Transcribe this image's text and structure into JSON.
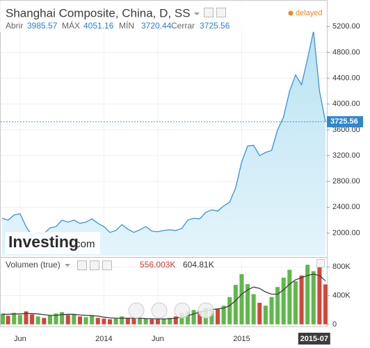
{
  "header": {
    "status": "delayed",
    "labels": [
      "Abrir",
      "MÁX",
      "MÍN",
      "Cerrar"
    ],
    "values": [
      3985.57,
      4051.16,
      3720.44,
      3725.56
    ]
  },
  "watermark": {
    "brand": "Investing",
    "suffix": ".com"
  },
  "chart_data": {
    "type": "area",
    "title": "Shanghai Composite, China, D, SS",
    "categories": [
      null,
      null,
      null,
      "Jun",
      null,
      null,
      null,
      null,
      null,
      null,
      null,
      null,
      null,
      null,
      null,
      null,
      null,
      "2014",
      null,
      null,
      null,
      null,
      null,
      null,
      null,
      null,
      "Jun",
      null,
      null,
      null,
      null,
      null,
      null,
      null,
      null,
      null,
      null,
      null,
      null,
      null,
      "2015",
      null,
      null,
      null,
      null,
      null,
      null,
      null,
      null,
      null,
      null,
      null,
      "2015-07",
      null,
      null
    ],
    "series": [
      {
        "color": "#3a92d4",
        "values": [
          2230,
          2200,
          2280,
          2300,
          2100,
          1960,
          2010,
          1990,
          2080,
          2100,
          2200,
          2170,
          2200,
          2150,
          2170,
          2220,
          2150,
          2100,
          2010,
          2040,
          2130,
          2060,
          2010,
          2050,
          2100,
          2030,
          2020,
          2040,
          2050,
          2040,
          2070,
          2200,
          2230,
          2220,
          2320,
          2360,
          2340,
          2420,
          2480,
          2700,
          3100,
          3350,
          3360,
          3200,
          3250,
          3280,
          3600,
          3800,
          4200,
          4450,
          4300,
          4700,
          5130,
          4200,
          3725.56
        ]
      }
    ],
    "close": 3725.56,
    "ylim": [
      1650,
      5580
    ],
    "yticks": [
      {
        "value": 2000,
        "label": "2000.00"
      },
      {
        "value": 2400,
        "label": "2400.00"
      },
      {
        "value": 2800,
        "label": "2800.00"
      },
      {
        "value": 3200,
        "label": "3200.00"
      },
      {
        "value": 3600,
        "label": "3600.00"
      },
      {
        "value": 4000,
        "label": "4000.00"
      },
      {
        "value": 4400,
        "label": "4400.00"
      },
      {
        "value": 4800,
        "label": "4800.00"
      },
      {
        "value": 5200,
        "label": "5200.00"
      }
    ],
    "grid": true,
    "volume": {
      "type": "bar",
      "title": "Volumen (true)",
      "readout": [
        "556.003K",
        "604.81K"
      ],
      "ylim": [
        -30000,
        880000
      ],
      "yticks": [
        0,
        {
          "value": 400000,
          "label": "400K"
        },
        {
          "value": 800000,
          "label": "800K"
        }
      ],
      "series": [
        {
          "color": "#5fb84a",
          "values": [
            150000,
            null,
            160000,
            130000,
            null,
            null,
            110000,
            null,
            120000,
            150000,
            170000,
            null,
            140000,
            null,
            100000,
            130000,
            null,
            null,
            null,
            80000,
            110000,
            null,
            null,
            90000,
            80000,
            null,
            null,
            80000,
            90000,
            null,
            160000,
            180000,
            200000,
            null,
            230000,
            220000,
            null,
            260000,
            380000,
            550000,
            700000,
            560000,
            420000,
            null,
            260000,
            380000,
            520000,
            650000,
            760000,
            600000,
            null,
            830000,
            740000,
            null,
            null
          ]
        },
        {
          "color": "#d2473a",
          "values": [
            null,
            120000,
            null,
            null,
            180000,
            140000,
            null,
            90000,
            null,
            null,
            null,
            130000,
            null,
            110000,
            null,
            null,
            90000,
            80000,
            70000,
            null,
            null,
            90000,
            80000,
            null,
            null,
            70000,
            70000,
            null,
            null,
            110000,
            null,
            null,
            null,
            190000,
            null,
            null,
            210000,
            null,
            null,
            null,
            null,
            null,
            null,
            300000,
            null,
            null,
            null,
            null,
            null,
            null,
            680000,
            null,
            null,
            820000,
            556003
          ]
        },
        {
          "type": "line",
          "color": "#3b3b3b",
          "values": [
            140000,
            140000,
            145000,
            145000,
            150000,
            150000,
            145000,
            135000,
            125000,
            125000,
            135000,
            140000,
            140000,
            130000,
            125000,
            120000,
            115000,
            100000,
            90000,
            85000,
            85000,
            85000,
            85000,
            85000,
            80000,
            78000,
            75000,
            75000,
            78000,
            85000,
            100000,
            120000,
            145000,
            170000,
            190000,
            205000,
            215000,
            225000,
            260000,
            330000,
            420000,
            480000,
            520000,
            500000,
            450000,
            420000,
            420000,
            480000,
            560000,
            620000,
            650000,
            680000,
            700000,
            680000,
            604810
          ]
        }
      ]
    }
  }
}
